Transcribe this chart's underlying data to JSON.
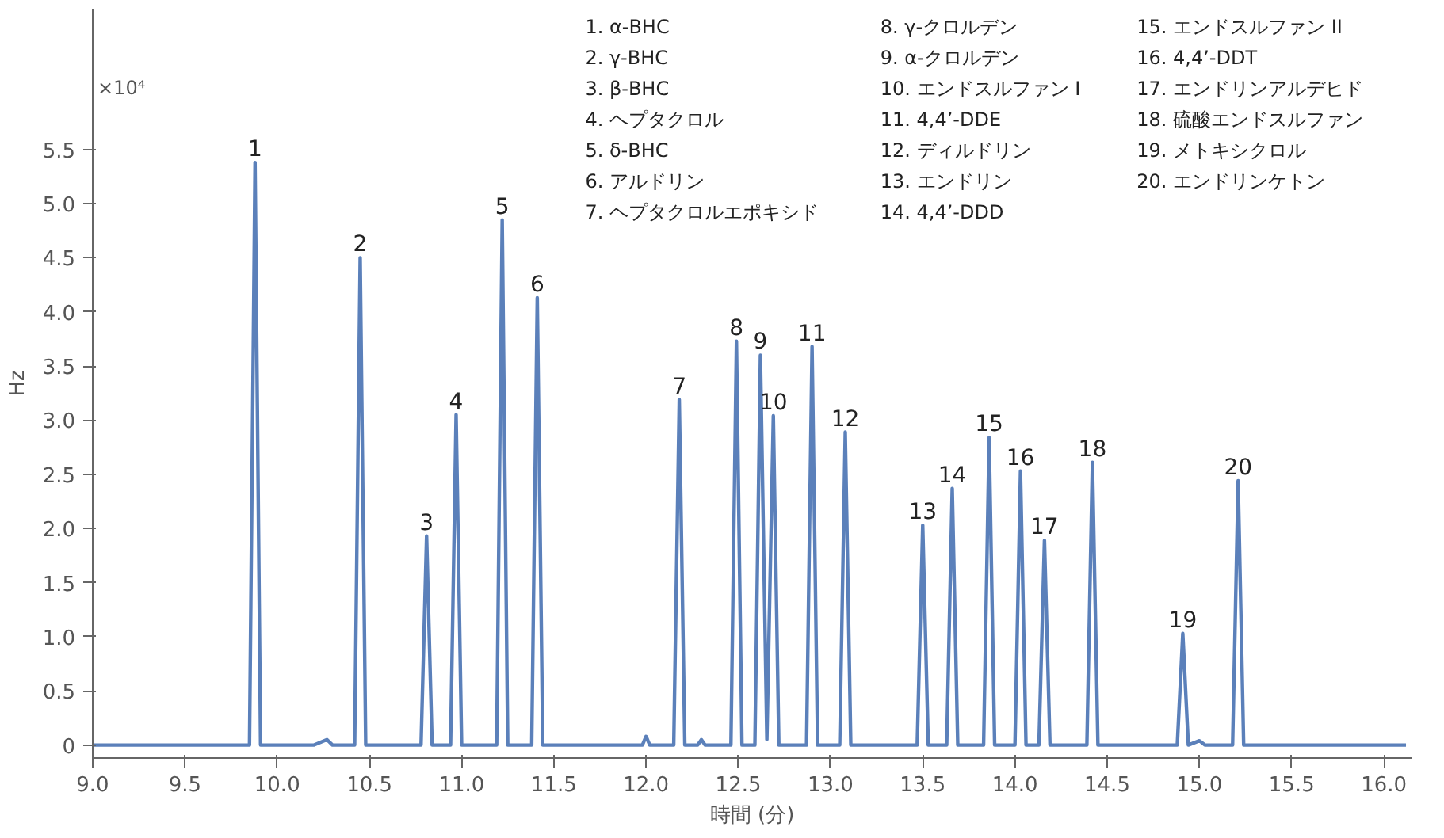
{
  "chart_data": {
    "type": "line",
    "xlabel": "時間 (分)",
    "ylabel": "Hz",
    "xlim": [
      9.0,
      16.15
    ],
    "ylim": [
      -0.12,
      6.8
    ],
    "xticks": [
      {
        "value": 9,
        "label": "9.0"
      },
      9.5,
      {
        "value": 10,
        "label": "10.0"
      },
      10.5,
      {
        "value": 11,
        "label": "11.0"
      },
      11.5,
      {
        "value": 12,
        "label": "12.0"
      },
      12.5,
      {
        "value": 13,
        "label": "13.0"
      },
      13.5,
      {
        "value": 14,
        "label": "14.0"
      },
      14.5,
      {
        "value": 15,
        "label": "15.0"
      },
      15.5,
      {
        "value": 16,
        "label": "16.0"
      }
    ],
    "yticks": [
      0,
      0.5,
      {
        "value": 1,
        "label": "1.0"
      },
      1.5,
      {
        "value": 2,
        "label": "2.0"
      },
      2.5,
      {
        "value": 3,
        "label": "3.0"
      },
      3.5,
      {
        "value": 4,
        "label": "4.0"
      },
      4.5,
      {
        "value": 5,
        "label": "5.0"
      },
      5.5
    ],
    "grid": false,
    "marker": "none",
    "line_style": "solid",
    "series": [
      {
        "color": "#5b80ba",
        "x": [
          9.0,
          9.5,
          9.85,
          9.88,
          9.91,
          10.2,
          10.27,
          10.3,
          10.42,
          10.45,
          10.48,
          10.78,
          10.81,
          10.84,
          10.94,
          10.97,
          11.0,
          11.19,
          11.22,
          11.25,
          11.38,
          11.41,
          11.44,
          11.8,
          11.98,
          12.0,
          12.02,
          12.15,
          12.18,
          12.21,
          12.28,
          12.3,
          12.32,
          12.46,
          12.49,
          12.52,
          12.59,
          12.62,
          12.655,
          12.69,
          12.72,
          12.87,
          12.9,
          12.93,
          13.05,
          13.08,
          13.11,
          13.47,
          13.5,
          13.53,
          13.63,
          13.66,
          13.69,
          13.83,
          13.86,
          13.89,
          14.0,
          14.03,
          14.06,
          14.13,
          14.16,
          14.19,
          14.39,
          14.42,
          14.45,
          14.88,
          14.91,
          14.94,
          15.0,
          15.03,
          15.18,
          15.21,
          15.24,
          15.6,
          16.12
        ],
        "values": [
          0,
          0,
          0,
          5.38,
          0,
          0,
          0.05,
          0,
          0,
          4.5,
          0,
          0,
          1.93,
          0,
          0,
          3.05,
          0,
          0,
          4.85,
          0,
          0,
          4.13,
          0,
          0,
          0,
          0.08,
          0,
          0,
          3.19,
          0,
          0,
          0.05,
          0,
          0,
          3.73,
          0,
          0,
          3.6,
          0.05,
          3.04,
          0,
          0,
          3.68,
          0,
          0,
          2.89,
          0,
          0,
          2.03,
          0,
          0,
          2.37,
          0,
          0,
          2.84,
          0,
          0,
          2.53,
          0,
          0,
          1.89,
          0,
          0,
          2.61,
          0,
          0,
          1.03,
          0,
          0.04,
          0,
          0,
          2.44,
          0,
          0,
          0
        ]
      }
    ],
    "annotations": [
      "×10⁴",
      "1.  α-BHC",
      "2.  γ-BHC",
      "3.  β-BHC",
      "4.  ヘプタクロル",
      "5.  δ-BHC",
      "6.  アルドリン",
      "7.  ヘプタクロルエポキシド",
      "8.  γ-クロルデン",
      "9.  α-クロルデン",
      "10.  エンドスルファン I",
      "11.  4,4’-DDE",
      "12.  ディルドリン",
      "13.  エンドリン",
      "14.  4,4’-DDD",
      "15.  エンドスルファン II",
      "16.  4,4’-DDT",
      "17.  エンドリンアルデヒド",
      "18.  硫酸エンドスルファン",
      "19.  メトキシクロル",
      "20.  エンドリンケトン",
      {
        "text": "1",
        "x": 9.88,
        "y": 5.38
      },
      {
        "text": "2",
        "x": 10.45,
        "y": 4.5
      },
      {
        "text": "3",
        "x": 10.81,
        "y": 1.93
      },
      {
        "text": "4",
        "x": 10.97,
        "y": 3.05
      },
      {
        "text": "5",
        "x": 11.22,
        "y": 4.85
      },
      {
        "text": "6",
        "x": 11.41,
        "y": 4.13
      },
      {
        "text": "7",
        "x": 12.18,
        "y": 3.19
      },
      {
        "text": "8",
        "x": 12.49,
        "y": 3.73
      },
      {
        "text": "9",
        "x": 12.62,
        "y": 3.6
      },
      {
        "text": "10",
        "x": 12.69,
        "y": 3.04
      },
      {
        "text": "11",
        "x": 12.9,
        "y": 3.68
      },
      {
        "text": "12",
        "x": 13.08,
        "y": 2.89
      },
      {
        "text": "13",
        "x": 13.5,
        "y": 2.03
      },
      {
        "text": "14",
        "x": 13.66,
        "y": 2.37
      },
      {
        "text": "15",
        "x": 13.86,
        "y": 2.84
      },
      {
        "text": "16",
        "x": 14.03,
        "y": 2.53
      },
      {
        "text": "17",
        "x": 14.16,
        "y": 1.89
      },
      {
        "text": "18",
        "x": 14.42,
        "y": 2.61
      },
      {
        "text": "19",
        "x": 14.91,
        "y": 1.03
      },
      {
        "text": "20",
        "x": 15.21,
        "y": 2.44
      }
    ]
  }
}
